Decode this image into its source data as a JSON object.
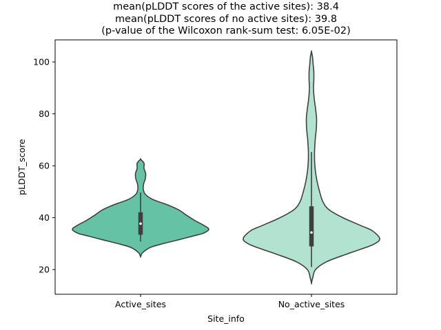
{
  "chart_data": {
    "type": "violin",
    "title_lines": [
      "mean(pLDDT scores of the active sites): 38.4",
      "mean(pLDDT scores of no active sites): 39.8",
      "(p-value of the Wilcoxon rank-sum test: 6.05E-02)"
    ],
    "xlabel": "Site_info",
    "ylabel": "pLDDT_score",
    "ylim": [
      10.5,
      108.5
    ],
    "y_ticks": [
      20,
      40,
      60,
      80,
      100
    ],
    "grid": false,
    "categories": [
      "Active_sites",
      "No_active_sites"
    ],
    "series": [
      {
        "category": "Active_sites",
        "color": "#66c2a5",
        "median": 37.7,
        "q1": 33.5,
        "q3": 42.0,
        "whisker_low": 30.8,
        "whisker_high": 49.7,
        "density": [
          [
            25.0,
            0.0
          ],
          [
            26.5,
            0.03
          ],
          [
            28.5,
            0.14
          ],
          [
            30.0,
            0.33
          ],
          [
            31.5,
            0.56
          ],
          [
            33.0,
            0.78
          ],
          [
            34.0,
            0.92
          ],
          [
            35.5,
            1.0
          ],
          [
            37.0,
            0.93
          ],
          [
            39.0,
            0.79
          ],
          [
            41.0,
            0.67
          ],
          [
            43.0,
            0.56
          ],
          [
            45.0,
            0.39
          ],
          [
            47.0,
            0.18
          ],
          [
            49.0,
            0.07
          ],
          [
            51.0,
            0.04
          ],
          [
            53.0,
            0.045
          ],
          [
            55.0,
            0.07
          ],
          [
            57.0,
            0.075
          ],
          [
            59.0,
            0.05
          ],
          [
            61.0,
            0.05
          ],
          [
            62.5,
            0.0
          ]
        ]
      },
      {
        "category": "No_active_sites",
        "color": "#b2e3d1",
        "median": 34.3,
        "q1": 29.0,
        "q3": 44.3,
        "whisker_low": 21.0,
        "whisker_high": 65.3,
        "density": [
          [
            14.8,
            0.0
          ],
          [
            17.0,
            0.02
          ],
          [
            20.0,
            0.06
          ],
          [
            23.0,
            0.22
          ],
          [
            26.0,
            0.52
          ],
          [
            28.0,
            0.74
          ],
          [
            30.0,
            0.93
          ],
          [
            32.0,
            1.0
          ],
          [
            35.0,
            0.89
          ],
          [
            37.0,
            0.72
          ],
          [
            40.0,
            0.46
          ],
          [
            43.0,
            0.26
          ],
          [
            46.0,
            0.17
          ],
          [
            50.0,
            0.12
          ],
          [
            55.0,
            0.075
          ],
          [
            60.0,
            0.05
          ],
          [
            65.0,
            0.045
          ],
          [
            70.0,
            0.055
          ],
          [
            74.0,
            0.07
          ],
          [
            78.0,
            0.075
          ],
          [
            82.0,
            0.06
          ],
          [
            86.0,
            0.04
          ],
          [
            90.0,
            0.03
          ],
          [
            93.0,
            0.035
          ],
          [
            96.0,
            0.035
          ],
          [
            99.0,
            0.025
          ],
          [
            102.0,
            0.015
          ],
          [
            104.0,
            0.0
          ]
        ]
      }
    ]
  }
}
